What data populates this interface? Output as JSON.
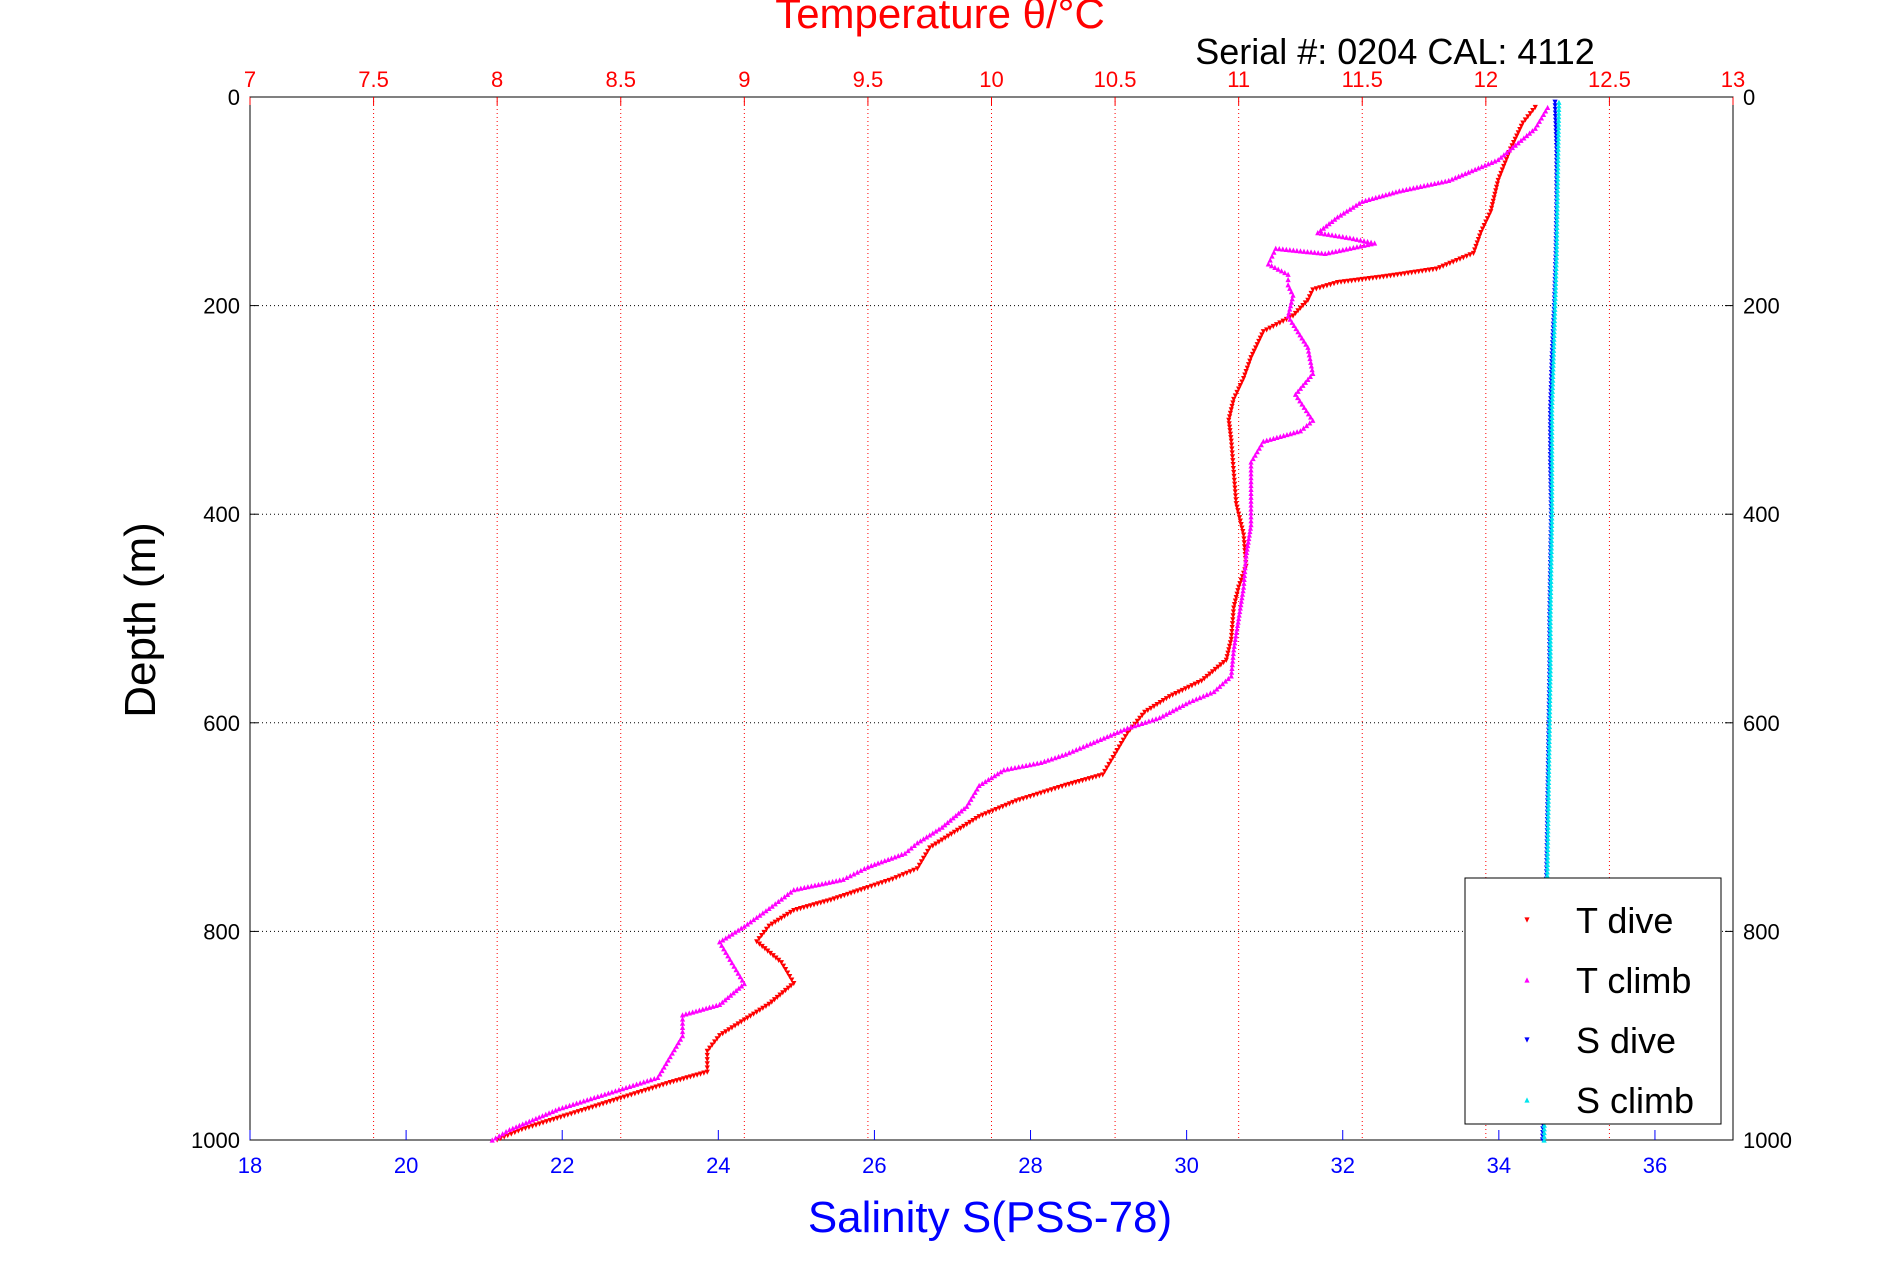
{
  "chart_data": {
    "type": "scatter",
    "title": "Temperature θ/°C",
    "subtitle": "Serial #: 0204  CAL: 4112",
    "ylabel": "Depth (m)",
    "xlabel_bottom": "Salinity S(PSS-78)",
    "y_reversed": true,
    "ylim": [
      0,
      1000
    ],
    "y_ticks": [
      "0",
      "200",
      "400",
      "600",
      "800",
      "1000"
    ],
    "x_top": {
      "label": "Temperature θ/°C",
      "lim": [
        7,
        13
      ],
      "ticks": [
        "7",
        "7.5",
        "8",
        "8.5",
        "9",
        "9.5",
        "10",
        "10.5",
        "11",
        "11.5",
        "12",
        "12.5",
        "13"
      ],
      "color": "#ff0000"
    },
    "x_bottom": {
      "label": "Salinity S(PSS-78)",
      "lim": [
        18,
        37
      ],
      "ticks": [
        "18",
        "20",
        "22",
        "24",
        "26",
        "28",
        "30",
        "32",
        "34",
        "36"
      ],
      "color": "#0000ff"
    },
    "grid": true,
    "legend_position": "bottom-right",
    "series": [
      {
        "name": "T dive",
        "axis": "temperature",
        "color": "#ff0000",
        "marker": "triangle-down",
        "points": [
          [
            12.2,
            10
          ],
          [
            12.15,
            25
          ],
          [
            12.1,
            50
          ],
          [
            12.05,
            80
          ],
          [
            12.02,
            110
          ],
          [
            11.98,
            130
          ],
          [
            11.95,
            150
          ],
          [
            11.8,
            165
          ],
          [
            11.6,
            172
          ],
          [
            11.4,
            178
          ],
          [
            11.3,
            185
          ],
          [
            11.28,
            195
          ],
          [
            11.22,
            210
          ],
          [
            11.1,
            225
          ],
          [
            11.05,
            250
          ],
          [
            11.02,
            270
          ],
          [
            10.98,
            290
          ],
          [
            10.96,
            310
          ],
          [
            10.97,
            330
          ],
          [
            10.98,
            360
          ],
          [
            10.99,
            390
          ],
          [
            11.02,
            420
          ],
          [
            11.03,
            450
          ],
          [
            11.0,
            470
          ],
          [
            10.98,
            490
          ],
          [
            10.97,
            520
          ],
          [
            10.95,
            540
          ],
          [
            10.85,
            560
          ],
          [
            10.72,
            575
          ],
          [
            10.62,
            590
          ],
          [
            10.55,
            610
          ],
          [
            10.5,
            630
          ],
          [
            10.45,
            650
          ],
          [
            10.3,
            660
          ],
          [
            10.1,
            675
          ],
          [
            9.95,
            690
          ],
          [
            9.85,
            705
          ],
          [
            9.75,
            720
          ],
          [
            9.7,
            740
          ],
          [
            9.6,
            750
          ],
          [
            9.5,
            758
          ],
          [
            9.35,
            770
          ],
          [
            9.2,
            780
          ],
          [
            9.1,
            795
          ],
          [
            9.05,
            810
          ],
          [
            9.15,
            830
          ],
          [
            9.2,
            850
          ],
          [
            9.1,
            870
          ],
          [
            9.0,
            885
          ],
          [
            8.9,
            900
          ],
          [
            8.85,
            915
          ],
          [
            8.85,
            935
          ],
          [
            8.7,
            945
          ],
          [
            8.5,
            960
          ],
          [
            8.3,
            975
          ],
          [
            8.1,
            990
          ],
          [
            8.0,
            1000
          ]
        ]
      },
      {
        "name": "T climb",
        "axis": "temperature",
        "color": "#ff00ff",
        "marker": "triangle-up",
        "points": [
          [
            12.25,
            10
          ],
          [
            12.2,
            30
          ],
          [
            12.05,
            60
          ],
          [
            11.85,
            80
          ],
          [
            11.65,
            90
          ],
          [
            11.5,
            100
          ],
          [
            11.4,
            115
          ],
          [
            11.32,
            130
          ],
          [
            11.45,
            135
          ],
          [
            11.55,
            140
          ],
          [
            11.35,
            150
          ],
          [
            11.15,
            145
          ],
          [
            11.12,
            160
          ],
          [
            11.2,
            170
          ],
          [
            11.2,
            180
          ],
          [
            11.22,
            190
          ],
          [
            11.2,
            210
          ],
          [
            11.28,
            240
          ],
          [
            11.3,
            265
          ],
          [
            11.23,
            285
          ],
          [
            11.3,
            310
          ],
          [
            11.25,
            320
          ],
          [
            11.1,
            330
          ],
          [
            11.05,
            350
          ],
          [
            11.05,
            380
          ],
          [
            11.05,
            410
          ],
          [
            11.03,
            440
          ],
          [
            11.02,
            470
          ],
          [
            11.0,
            500
          ],
          [
            10.98,
            530
          ],
          [
            10.97,
            555
          ],
          [
            10.9,
            570
          ],
          [
            10.8,
            580
          ],
          [
            10.68,
            595
          ],
          [
            10.55,
            605
          ],
          [
            10.4,
            620
          ],
          [
            10.3,
            630
          ],
          [
            10.2,
            638
          ],
          [
            10.05,
            645
          ],
          [
            9.95,
            660
          ],
          [
            9.9,
            680
          ],
          [
            9.8,
            700
          ],
          [
            9.7,
            715
          ],
          [
            9.65,
            725
          ],
          [
            9.5,
            738
          ],
          [
            9.4,
            750
          ],
          [
            9.2,
            760
          ],
          [
            9.1,
            778
          ],
          [
            9.0,
            795
          ],
          [
            8.9,
            810
          ],
          [
            8.95,
            830
          ],
          [
            9.0,
            850
          ],
          [
            8.9,
            870
          ],
          [
            8.75,
            880
          ],
          [
            8.75,
            900
          ],
          [
            8.7,
            920
          ],
          [
            8.65,
            940
          ],
          [
            8.45,
            955
          ],
          [
            8.25,
            970
          ],
          [
            8.05,
            990
          ],
          [
            7.98,
            1000
          ]
        ]
      },
      {
        "name": "S dive",
        "axis": "salinity",
        "color": "#0000ff",
        "marker": "triangle-down",
        "points": [
          [
            34.72,
            5
          ],
          [
            34.74,
            50
          ],
          [
            34.74,
            100
          ],
          [
            34.73,
            150
          ],
          [
            34.71,
            200
          ],
          [
            34.68,
            250
          ],
          [
            34.66,
            300
          ],
          [
            34.66,
            350
          ],
          [
            34.67,
            400
          ],
          [
            34.66,
            450
          ],
          [
            34.65,
            500
          ],
          [
            34.65,
            550
          ],
          [
            34.64,
            600
          ],
          [
            34.63,
            650
          ],
          [
            34.62,
            700
          ],
          [
            34.61,
            750
          ],
          [
            34.6,
            800
          ],
          [
            34.6,
            850
          ],
          [
            34.59,
            900
          ],
          [
            34.58,
            950
          ],
          [
            34.56,
            1000
          ]
        ]
      },
      {
        "name": "S climb",
        "axis": "salinity",
        "color": "#00e5ee",
        "marker": "triangle-up",
        "points": [
          [
            34.77,
            5
          ],
          [
            34.76,
            50
          ],
          [
            34.75,
            100
          ],
          [
            34.74,
            150
          ],
          [
            34.72,
            200
          ],
          [
            34.7,
            250
          ],
          [
            34.68,
            300
          ],
          [
            34.68,
            350
          ],
          [
            34.68,
            400
          ],
          [
            34.67,
            450
          ],
          [
            34.66,
            500
          ],
          [
            34.66,
            550
          ],
          [
            34.65,
            600
          ],
          [
            34.64,
            650
          ],
          [
            34.63,
            700
          ],
          [
            34.62,
            750
          ],
          [
            34.61,
            800
          ],
          [
            34.6,
            850
          ],
          [
            34.6,
            900
          ],
          [
            34.59,
            950
          ],
          [
            34.58,
            1000
          ]
        ]
      }
    ]
  }
}
